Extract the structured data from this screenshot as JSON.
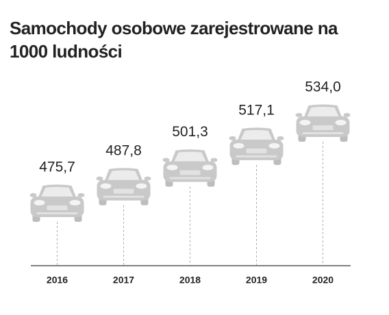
{
  "chart_data": {
    "type": "pictogram",
    "title": "Samochody osobowe zarejestrowane na 1000 ludności",
    "categories": [
      "2016",
      "2017",
      "2018",
      "2019",
      "2020"
    ],
    "values": [
      475.7,
      487.8,
      501.3,
      517.1,
      534.0
    ],
    "value_labels": [
      "475,7",
      "487,8",
      "501,3",
      "517,1",
      "534,0"
    ],
    "color": "#c9c9c9"
  }
}
